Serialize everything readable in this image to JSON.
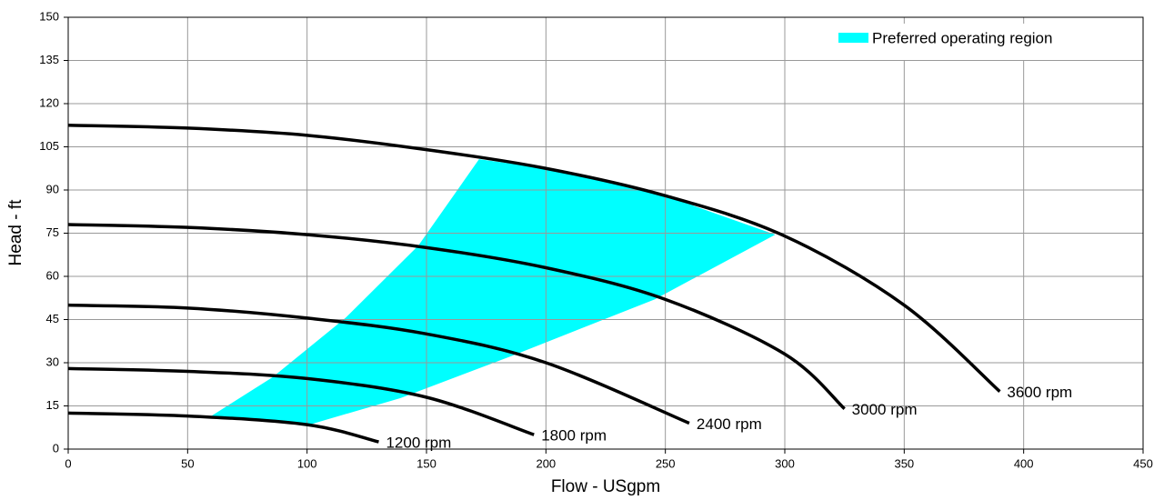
{
  "chart_data": {
    "type": "line",
    "x_label": "Flow - USgpm",
    "y_label": "Head - ft",
    "xlim": [
      0,
      450
    ],
    "xticks": [
      0,
      50,
      100,
      150,
      200,
      250,
      300,
      350,
      400,
      450
    ],
    "ylim": [
      0,
      150
    ],
    "yticks": [
      0,
      15,
      30,
      45,
      60,
      75,
      90,
      105,
      120,
      135,
      150
    ],
    "grid": true,
    "legend": "upper right",
    "area": {
      "name": "Preferred operating region",
      "color": "#00ffff",
      "x": [
        59,
        85.6,
        116,
        146.6,
        172,
        200,
        250,
        296,
        245.5,
        184.6,
        139,
        101
      ],
      "y": [
        11,
        25,
        45.5,
        70.7,
        100.7,
        97.5,
        88,
        74.5,
        52,
        32,
        17.7,
        8.5
      ]
    },
    "series": [
      {
        "name": "1200 rpm",
        "color": "#000000",
        "x": [
          0,
          50,
          100,
          130
        ],
        "values": [
          12.5,
          11.5,
          8.5,
          2.5
        ]
      },
      {
        "name": "1800 rpm",
        "color": "#000000",
        "x": [
          0,
          50,
          100,
          150,
          195
        ],
        "values": [
          28,
          27,
          24.5,
          18,
          5
        ]
      },
      {
        "name": "2400 rpm",
        "color": "#000000",
        "x": [
          0,
          50,
          100,
          150,
          200,
          260
        ],
        "values": [
          50,
          49,
          45.5,
          40,
          30,
          9
        ]
      },
      {
        "name": "3000 rpm",
        "color": "#000000",
        "x": [
          0,
          50,
          100,
          150,
          200,
          250,
          300,
          325
        ],
        "values": [
          78,
          77,
          74.5,
          70,
          63,
          52,
          33,
          14
        ]
      },
      {
        "name": "3600 rpm",
        "color": "#000000",
        "x": [
          0,
          50,
          100,
          150,
          200,
          250,
          300,
          350,
          390
        ],
        "values": [
          112.5,
          111.5,
          109,
          104,
          97.5,
          88,
          74,
          50,
          20
        ]
      }
    ]
  }
}
